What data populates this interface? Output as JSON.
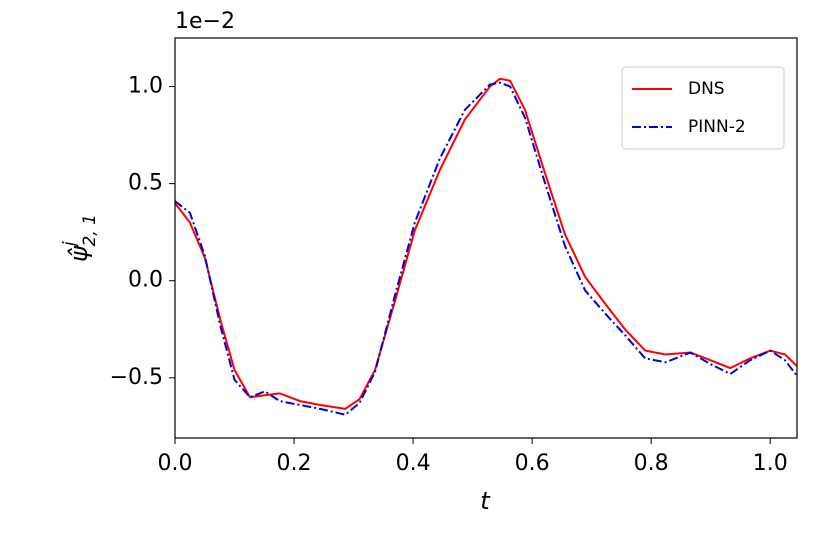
{
  "chart_data": {
    "type": "line",
    "x_label": "t",
    "y_label": {
      "symbol": "ψ̂",
      "superscript": "j",
      "subscript": "2, 1"
    },
    "y_offset_label": "1e−2",
    "x": [
      0,
      0.025,
      0.05,
      0.076,
      0.1,
      0.126,
      0.151,
      0.176,
      0.21,
      0.244,
      0.286,
      0.31,
      0.336,
      0.37,
      0.403,
      0.445,
      0.487,
      0.529,
      0.546,
      0.563,
      0.588,
      0.622,
      0.655,
      0.689,
      0.723,
      0.756,
      0.79,
      0.824,
      0.866,
      0.9,
      0.933,
      0.966,
      1.0,
      1.025,
      1.045
    ],
    "series": [
      {
        "name": "DNS",
        "color": "#ff0000",
        "dash": "solid",
        "values": [
          0.4,
          0.3,
          0.12,
          -0.2,
          -0.46,
          -0.6,
          -0.59,
          -0.58,
          -0.62,
          -0.64,
          -0.66,
          -0.61,
          -0.46,
          -0.1,
          0.26,
          0.57,
          0.83,
          1.0,
          1.04,
          1.03,
          0.88,
          0.55,
          0.24,
          0.02,
          -0.12,
          -0.25,
          -0.36,
          -0.38,
          -0.37,
          -0.41,
          -0.45,
          -0.4,
          -0.36,
          -0.38,
          -0.44
        ]
      },
      {
        "name": "PINN-2",
        "color": "#0000dd",
        "dash": "dashdot",
        "values": [
          0.41,
          0.35,
          0.13,
          -0.23,
          -0.51,
          -0.6,
          -0.57,
          -0.62,
          -0.64,
          -0.66,
          -0.69,
          -0.63,
          -0.47,
          -0.07,
          0.3,
          0.63,
          0.88,
          1.01,
          1.02,
          1.0,
          0.84,
          0.5,
          0.18,
          -0.05,
          -0.17,
          -0.28,
          -0.4,
          -0.42,
          -0.37,
          -0.43,
          -0.48,
          -0.41,
          -0.36,
          -0.41,
          -0.49
        ]
      }
    ],
    "xlim": [
      0,
      1.045
    ],
    "ylim": [
      -0.81,
      1.25
    ],
    "xticks": [
      {
        "value": 0,
        "label": "0.0"
      },
      0.2,
      0.4,
      0.6,
      0.8,
      {
        "value": 1,
        "label": "1.0"
      }
    ],
    "yticks": [
      {
        "value": -0.5,
        "label": "−0.5"
      },
      {
        "value": 0,
        "label": "0.0"
      },
      0.5,
      {
        "value": 1,
        "label": "1.0"
      }
    ],
    "grid": false,
    "legend": "upper right"
  }
}
